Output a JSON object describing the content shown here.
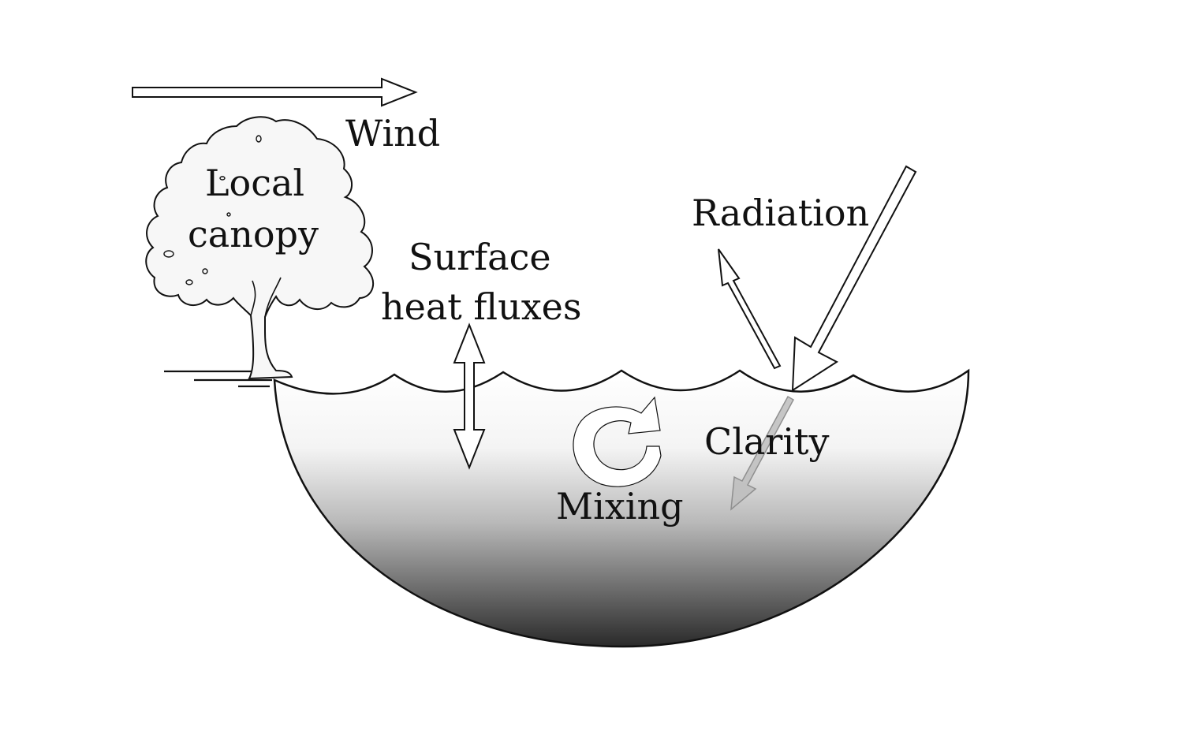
{
  "labels": {
    "wind": "Wind",
    "local_canopy_line1": "Local",
    "local_canopy_line2": "canopy",
    "surface_heat_fluxes_line1": "Surface",
    "surface_heat_fluxes_line2": "heat fluxes",
    "radiation": "Radiation",
    "clarity": "Clarity",
    "mixing": "Mixing"
  },
  "colors": {
    "stroke": "#111111",
    "water_top": "#ffffff",
    "water_bottom": "#2a2a2a",
    "arrow_fill": "#ffffff",
    "tree_fill": "#f7f7f7",
    "submerged_arrow": "#a8a8a8"
  },
  "icons": {
    "tree": "tree-icon",
    "mixing": "circular-arrow-icon",
    "radiation_in": "arrow-down-left-icon",
    "radiation_out": "arrow-up-left-icon",
    "heat_flux": "double-vertical-arrow-icon",
    "wind": "arrow-right-icon"
  }
}
